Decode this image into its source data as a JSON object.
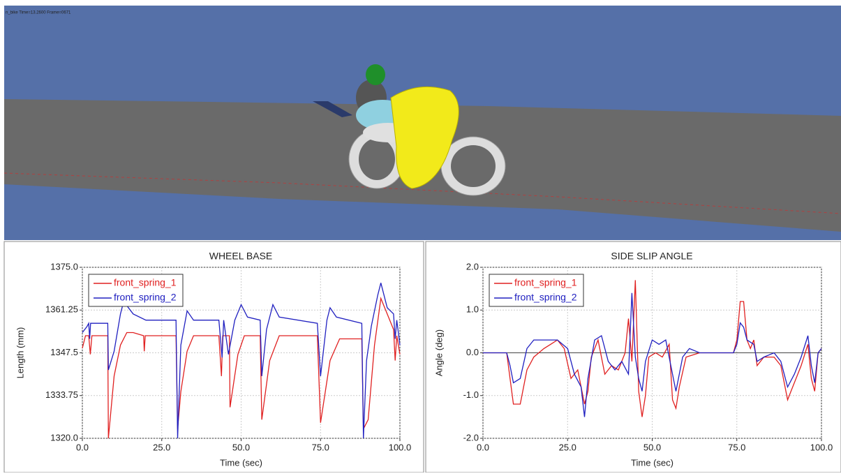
{
  "viewport": {
    "label": "n_bike   Time=13.2600  Frame=0671"
  },
  "chart_data": [
    {
      "type": "line",
      "title": "WHEEL BASE",
      "x_label": "Time (sec)",
      "y_label": "Length (mm)",
      "xlim": [
        0,
        100
      ],
      "ylim": [
        1320,
        1375
      ],
      "xticks": [
        {
          "value": 0,
          "label": "0.0"
        },
        {
          "value": 25,
          "label": "25.0"
        },
        {
          "value": 50,
          "label": "50.0"
        },
        {
          "value": 75,
          "label": "75.0"
        },
        {
          "value": 100,
          "label": "100.0"
        }
      ],
      "yticks": [
        {
          "value": 1320,
          "label": "1320.0"
        },
        1333.75,
        1347.5,
        1361.25,
        {
          "value": 1375,
          "label": "1375.0"
        }
      ],
      "grid": true,
      "legend": "upper left",
      "series": [
        {
          "name": "front_spring_1",
          "color": "#e02020",
          "x": [
            0,
            1,
            2,
            2.5,
            3,
            8,
            8.2,
            10,
            12,
            14,
            16,
            19.3,
            19.5,
            19.8,
            29.5,
            30,
            31,
            33,
            35,
            43,
            43.8,
            44.2,
            46.3,
            46.5,
            49,
            51,
            56,
            56.5,
            59,
            62,
            74,
            75,
            78,
            81,
            88,
            88.5,
            90,
            92,
            94,
            96,
            98,
            98.5,
            99,
            100
          ],
          "values": [
            1349,
            1353,
            1353,
            1347,
            1353,
            1353,
            1320,
            1340,
            1350,
            1354,
            1354,
            1353,
            1348,
            1353,
            1353,
            1323,
            1335,
            1348,
            1353,
            1353,
            1340,
            1353,
            1353,
            1330,
            1347,
            1353,
            1353,
            1326,
            1345,
            1353,
            1353,
            1325,
            1345,
            1352,
            1352,
            1323,
            1326,
            1350,
            1365,
            1360,
            1355,
            1345,
            1353,
            1347
          ]
        },
        {
          "name": "front_spring_2",
          "color": "#2020c0",
          "x": [
            0,
            1.5,
            2,
            2.3,
            2.6,
            8,
            8.2,
            10,
            12,
            13,
            16,
            20,
            29.5,
            30,
            31,
            33,
            35,
            43,
            44,
            44.5,
            46,
            48,
            50,
            52,
            56,
            56.5,
            58,
            60,
            62,
            74,
            75,
            77,
            78,
            80,
            88,
            88.5,
            89.5,
            91,
            93,
            94,
            96,
            98,
            98.5,
            99,
            100
          ],
          "values": [
            1354,
            1356,
            1357,
            1352,
            1357,
            1357,
            1342,
            1348,
            1360,
            1364,
            1360,
            1358,
            1358,
            1320,
            1350,
            1361,
            1358,
            1358,
            1346,
            1358,
            1347,
            1358,
            1363,
            1359,
            1358,
            1340,
            1355,
            1363,
            1359,
            1357,
            1340,
            1358,
            1362,
            1359,
            1357,
            1320,
            1345,
            1356,
            1366,
            1370,
            1362,
            1360,
            1352,
            1358,
            1350
          ]
        }
      ]
    },
    {
      "type": "line",
      "title": "SIDE SLIP ANGLE",
      "x_label": "Time (sec)",
      "y_label": "Angle (deg)",
      "xlim": [
        0,
        100
      ],
      "ylim": [
        -2,
        2
      ],
      "xticks": [
        {
          "value": 0,
          "label": "0.0"
        },
        {
          "value": 25,
          "label": "25.0"
        },
        {
          "value": 50,
          "label": "50.0"
        },
        {
          "value": 75,
          "label": "75.0"
        },
        {
          "value": 100,
          "label": "100.0"
        }
      ],
      "yticks": [
        {
          "value": -2,
          "label": "-2.0"
        },
        {
          "value": -1,
          "label": "-1.0"
        },
        {
          "value": 0,
          "label": "0.0"
        },
        {
          "value": 1,
          "label": "1.0"
        },
        {
          "value": 2,
          "label": "2.0"
        }
      ],
      "grid": true,
      "legend": "upper left",
      "series": [
        {
          "name": "front_spring_1",
          "color": "#e02020",
          "x": [
            0,
            7,
            8,
            9,
            11,
            13,
            15,
            18,
            20,
            22,
            24,
            26,
            28,
            30,
            31,
            32,
            34,
            36,
            38,
            40,
            42,
            43,
            44,
            45,
            46,
            47,
            48,
            49,
            51,
            53,
            55,
            56,
            57,
            58,
            60,
            64,
            74,
            75,
            76,
            77,
            78,
            79,
            80,
            81,
            83,
            86,
            88,
            90,
            91,
            94,
            96,
            97,
            98,
            99,
            100
          ],
          "values": [
            0,
            0,
            -0.6,
            -1.2,
            -1.2,
            -0.4,
            -0.1,
            0.1,
            0.2,
            0.3,
            0.1,
            -0.6,
            -0.4,
            -1.2,
            -0.9,
            -0.1,
            0.3,
            -0.5,
            -0.3,
            -0.4,
            0,
            0.8,
            -0.2,
            1.7,
            -0.9,
            -1.5,
            -1.0,
            -0.1,
            0,
            -0.1,
            0.2,
            -1.1,
            -1.3,
            -0.8,
            -0.1,
            0,
            0,
            0.3,
            1.2,
            1.2,
            0.3,
            0.1,
            0.3,
            -0.3,
            -0.1,
            -0.1,
            -0.3,
            -1.1,
            -0.9,
            -0.3,
            0.2,
            -0.6,
            -0.9,
            0,
            0.1
          ]
        },
        {
          "name": "front_spring_2",
          "color": "#2020c0",
          "x": [
            0,
            7,
            8,
            9,
            11,
            13,
            15,
            17,
            20,
            22,
            25,
            27,
            29,
            30,
            31,
            33,
            35,
            37,
            39,
            41,
            43,
            44,
            45,
            46,
            47,
            48,
            50,
            52,
            54,
            56,
            57,
            59,
            61,
            64,
            74,
            75,
            76,
            77,
            78,
            80,
            81,
            83,
            86,
            88,
            90,
            92,
            94,
            96,
            97,
            98,
            99,
            100
          ],
          "values": [
            0,
            0,
            -0.3,
            -0.7,
            -0.6,
            0.1,
            0.3,
            0.3,
            0.3,
            0.3,
            0.1,
            -0.5,
            -0.8,
            -1.5,
            -0.6,
            0.3,
            0.4,
            -0.2,
            -0.4,
            -0.2,
            -0.5,
            1.4,
            -0.1,
            -0.6,
            -0.9,
            -0.2,
            0.3,
            0.2,
            0.3,
            -0.5,
            -0.9,
            -0.1,
            0.1,
            0,
            0,
            0.2,
            0.7,
            0.6,
            0.3,
            0.2,
            -0.2,
            -0.1,
            0,
            -0.2,
            -0.8,
            -0.5,
            -0.1,
            0.4,
            -0.3,
            -0.7,
            0,
            0.1
          ]
        }
      ]
    }
  ]
}
